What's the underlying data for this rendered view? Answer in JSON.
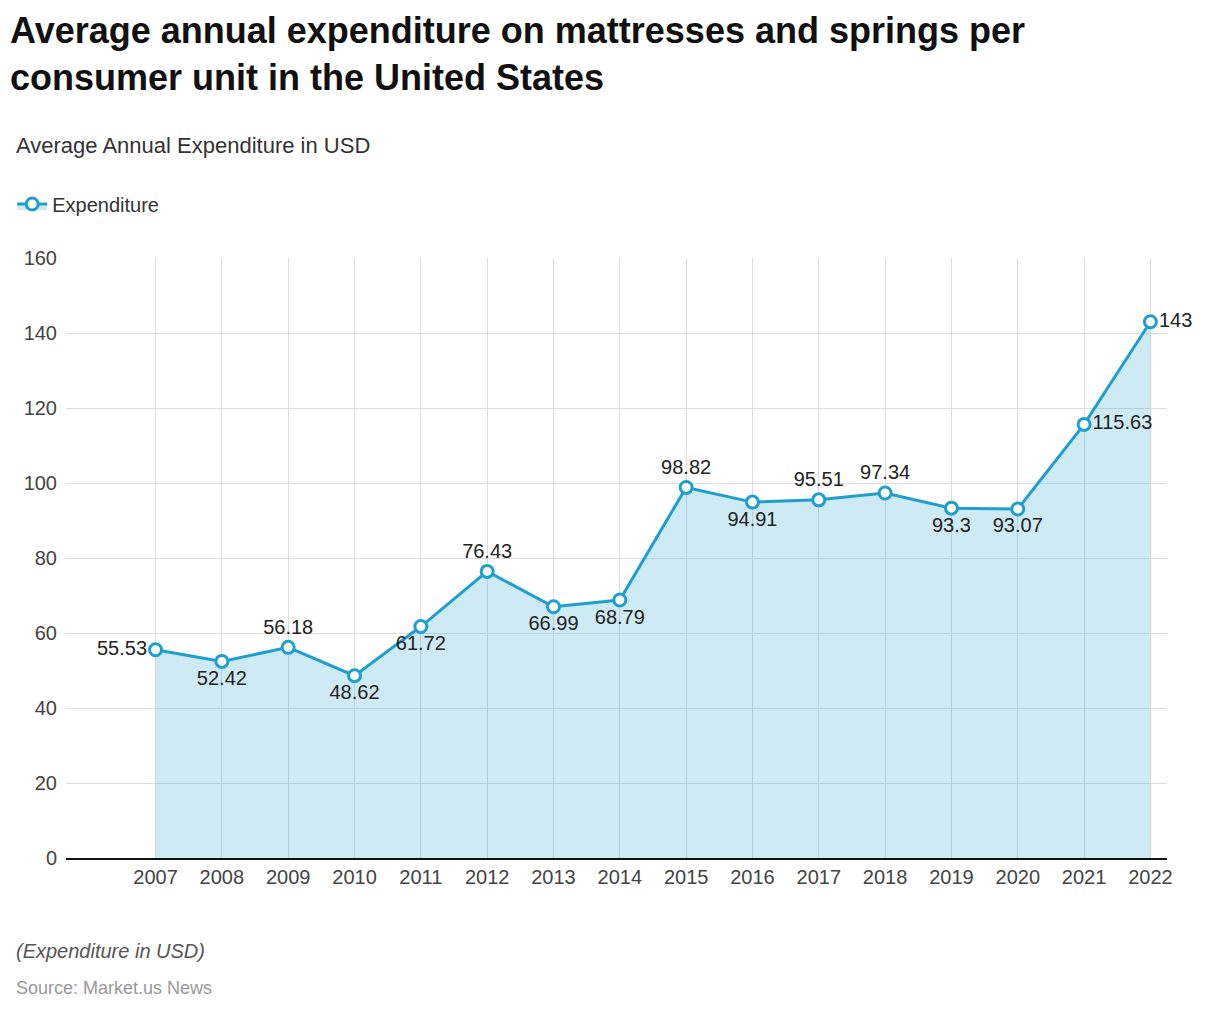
{
  "chart_data": {
    "type": "line",
    "title": "Average annual expenditure on mattresses and springs per consumer unit in the United States",
    "subtitle": "Average Annual Expenditure in USD",
    "note": "(Expenditure in USD)",
    "source": "Source: Market.us News",
    "categories": [
      "2007",
      "2008",
      "2009",
      "2010",
      "2011",
      "2012",
      "2013",
      "2014",
      "2015",
      "2016",
      "2017",
      "2018",
      "2019",
      "2020",
      "2021",
      "2022"
    ],
    "series": [
      {
        "name": "Expenditure",
        "color": "#1f9fd0",
        "marker": "circle",
        "values": [
          55.53,
          52.42,
          56.18,
          48.62,
          61.72,
          76.43,
          66.99,
          68.79,
          98.82,
          94.91,
          95.51,
          97.34,
          93.3,
          93.07,
          115.63,
          143
        ]
      }
    ],
    "ylim": [
      0,
      160
    ],
    "yticks": [
      0,
      20,
      40,
      60,
      80,
      100,
      120,
      140,
      160
    ],
    "grid": true,
    "legend": "top-left",
    "data_labels": true
  }
}
